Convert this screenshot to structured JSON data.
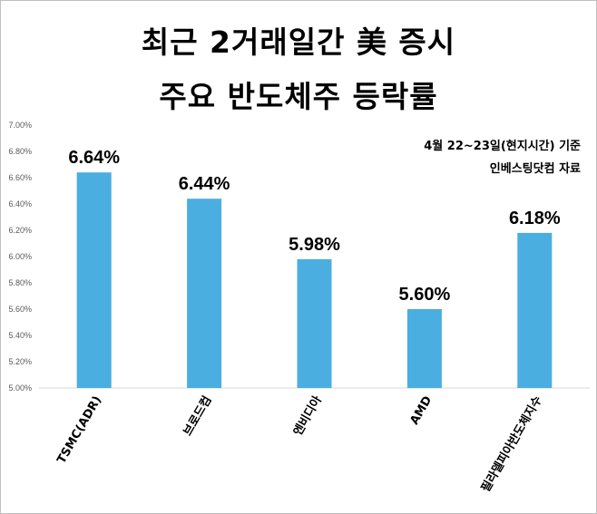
{
  "header": {
    "title_line1": "최근 2거래일간 美 증시",
    "title_line2": "주요 반도체주 등락률"
  },
  "notes": {
    "line1": "4월 22~23일(현지시간) 기준",
    "line2": "인베스팅닷컴 자료"
  },
  "chart_data": {
    "type": "bar",
    "categories": [
      "TSMC(ADR)",
      "브로드컴",
      "엔비디아",
      "AMD",
      "필라델피아반도체지수"
    ],
    "values": [
      6.64,
      6.44,
      5.98,
      5.6,
      6.18
    ],
    "value_labels": [
      "6.64%",
      "6.44%",
      "5.98%",
      "5.60%",
      "6.18%"
    ],
    "ylim": [
      5.0,
      7.0
    ],
    "yticks": [
      "5.00%",
      "5.20%",
      "5.40%",
      "5.60%",
      "5.80%",
      "6.00%",
      "6.20%",
      "6.40%",
      "6.60%",
      "6.80%",
      "7.00%"
    ],
    "bar_color": "#4aaee0",
    "grid": false,
    "legend": "none"
  }
}
